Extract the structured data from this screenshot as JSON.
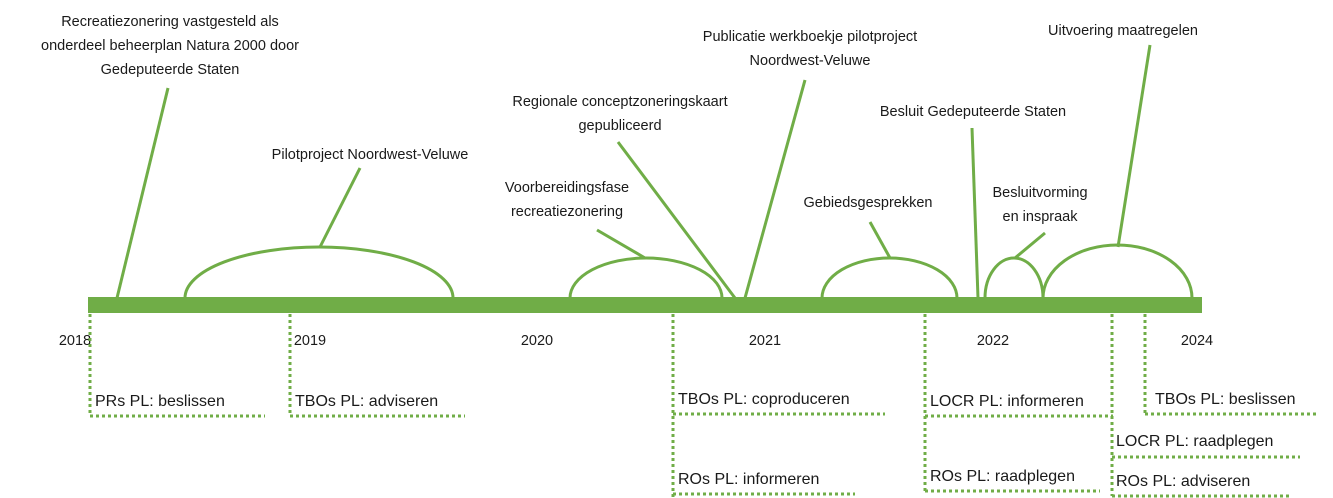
{
  "years": [
    "2018",
    "2019",
    "2020",
    "2021",
    "2022",
    "2024"
  ],
  "events": [
    {
      "lines": [
        "Recreatiezonering vastgesteld als",
        "onderdeel beheerplan Natura 2000 door",
        "Gedeputeerde Staten"
      ]
    },
    {
      "lines": [
        "Pilotproject Noordwest-Veluwe"
      ]
    },
    {
      "lines": [
        "Voorbereidingsfase",
        "recreatiezonering"
      ]
    },
    {
      "lines": [
        "Regionale conceptzoneringskaart",
        "gepubliceerd"
      ]
    },
    {
      "lines": [
        "Publicatie werkboekje pilotproject",
        "Noordwest-Veluwe"
      ]
    },
    {
      "lines": [
        "Gebiedsgesprekken"
      ]
    },
    {
      "lines": [
        "Besluit Gedeputeerde Staten"
      ]
    },
    {
      "lines": [
        "Besluitvorming",
        "en inspraak"
      ]
    },
    {
      "lines": [
        "Uitvoering maatregelen"
      ]
    }
  ],
  "participation": [
    "PRs PL: beslissen",
    "TBOs PL: adviseren",
    "TBOs PL: coproduceren",
    "ROs PL: informeren",
    "LOCR PL: informeren",
    "ROs PL: raadplegen",
    "LOCR PL: raadplegen",
    "ROs PL: adviseren",
    "TBOs PL: beslissen"
  ]
}
